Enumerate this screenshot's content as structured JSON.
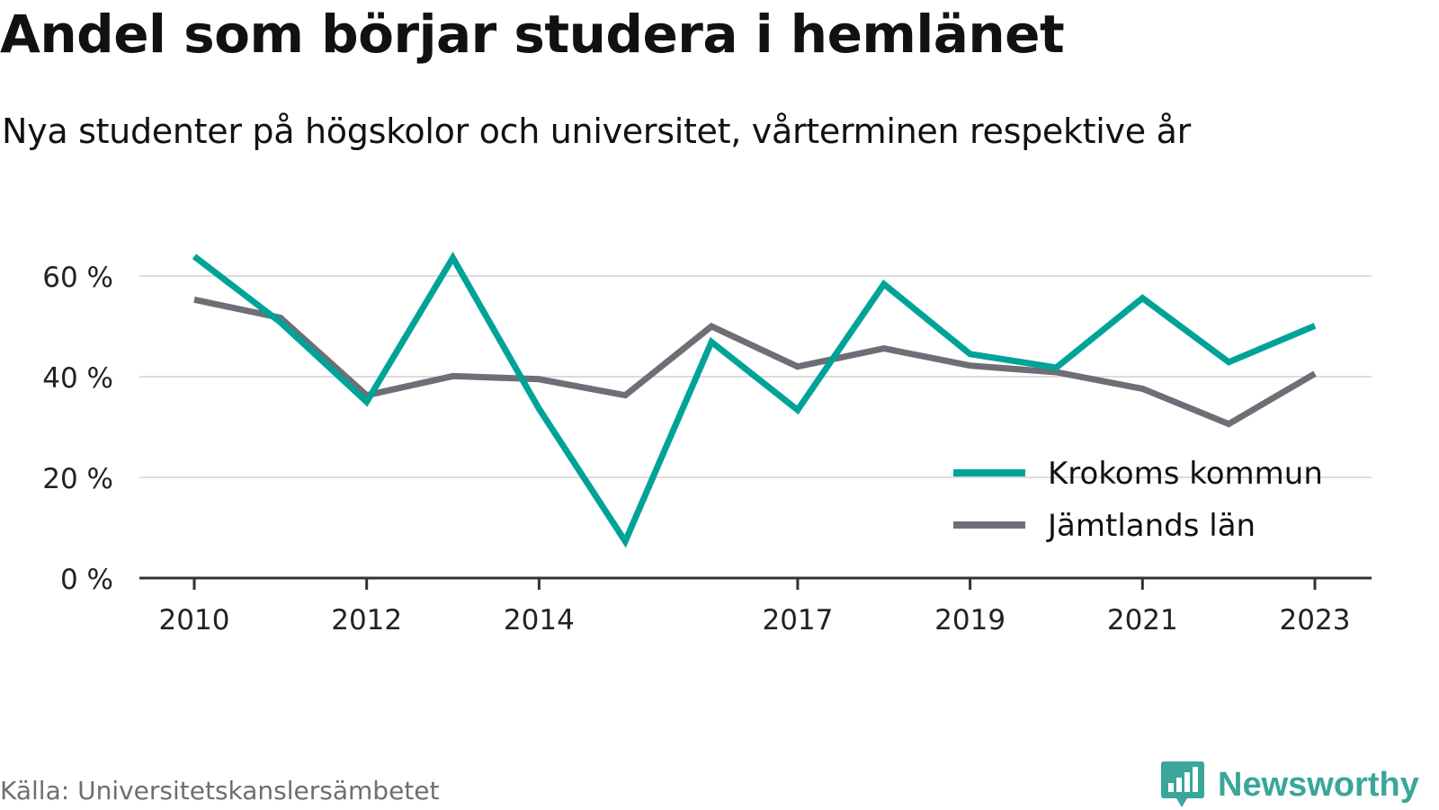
{
  "header": {
    "title": "Andel som börjar studera i hemlänet",
    "subtitle": "Nya studenter på högskolor och universitet, vårterminen respektive år"
  },
  "footer": {
    "source": "Källa: Universitetskanslersämbetet",
    "brand": "Newsworthy",
    "brand_icon": "newsworthy-logo-icon",
    "brand_color": "#3aa69a"
  },
  "chart_data": {
    "type": "line",
    "x": [
      2010,
      2011,
      2012,
      2013,
      2014,
      2015,
      2016,
      2017,
      2018,
      2019,
      2020,
      2021,
      2022,
      2023
    ],
    "x_tick_labels": [
      "2010",
      "2012",
      "2014",
      "2017",
      "2019",
      "2021",
      "2023"
    ],
    "y_tick_labels": [
      "0 %",
      "20 %",
      "40 %",
      "60 %"
    ],
    "ylim": [
      0,
      60
    ],
    "y_ticks": [
      0,
      20,
      40,
      60
    ],
    "grid": true,
    "legend_position": "bottom-right",
    "series": [
      {
        "name": "Krokoms kommun",
        "color": "#00a398",
        "values": [
          63.9,
          50.8,
          35.0,
          63.6,
          33.6,
          7.3,
          46.9,
          33.4,
          58.4,
          44.5,
          41.8,
          55.6,
          42.9,
          50.1
        ]
      },
      {
        "name": "Jämtlands län",
        "color": "#6e6e76",
        "values": [
          55.3,
          51.7,
          36.3,
          40.1,
          39.5,
          36.3,
          50.0,
          42.0,
          45.6,
          42.2,
          40.9,
          37.6,
          30.6,
          40.6
        ]
      }
    ]
  }
}
